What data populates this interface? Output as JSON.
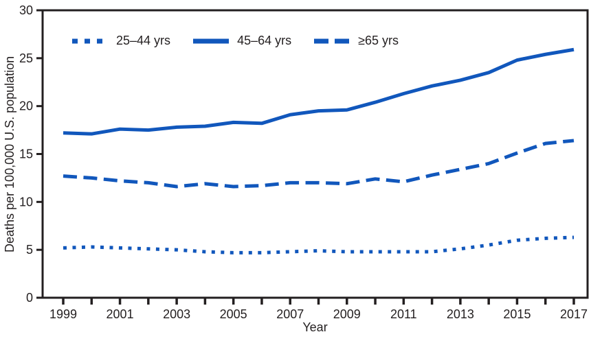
{
  "figure": {
    "background": "#ffffff",
    "axis_color": "#231f20",
    "text_color": "#231f20"
  },
  "chart_data": {
    "type": "line",
    "title": "",
    "xlabel": "Year",
    "ylabel": "Deaths per 100,000 U.S. population",
    "x": [
      1999,
      2000,
      2001,
      2002,
      2003,
      2004,
      2005,
      2006,
      2007,
      2008,
      2009,
      2010,
      2011,
      2012,
      2013,
      2014,
      2015,
      2016,
      2017
    ],
    "x_tick_years": [
      1999,
      2001,
      2003,
      2005,
      2007,
      2009,
      2011,
      2013,
      2015,
      2017
    ],
    "ylim": [
      0,
      30
    ],
    "yticks": [
      0,
      5,
      10,
      15,
      20,
      25,
      30
    ],
    "grid": false,
    "legend_position": "top-left-inside",
    "line_color": "#1157bc",
    "series": [
      {
        "name": "25–44 yrs",
        "style": "dotted",
        "values": [
          5.2,
          5.3,
          5.2,
          5.1,
          5.0,
          4.8,
          4.7,
          4.7,
          4.8,
          4.9,
          4.8,
          4.8,
          4.8,
          4.8,
          5.1,
          5.5,
          6.0,
          6.2,
          6.3
        ]
      },
      {
        "name": "45–64 yrs",
        "style": "solid",
        "values": [
          17.2,
          17.1,
          17.6,
          17.5,
          17.8,
          17.9,
          18.3,
          18.2,
          19.1,
          19.5,
          19.6,
          20.4,
          21.3,
          22.1,
          22.7,
          23.5,
          24.8,
          25.4,
          25.9
        ]
      },
      {
        "name": "≥65 yrs",
        "style": "dashed",
        "values": [
          12.7,
          12.5,
          12.2,
          12.0,
          11.6,
          11.9,
          11.6,
          11.7,
          12.0,
          12.0,
          11.9,
          12.4,
          12.1,
          12.8,
          13.4,
          14.0,
          15.1,
          16.1,
          16.4
        ]
      }
    ]
  }
}
